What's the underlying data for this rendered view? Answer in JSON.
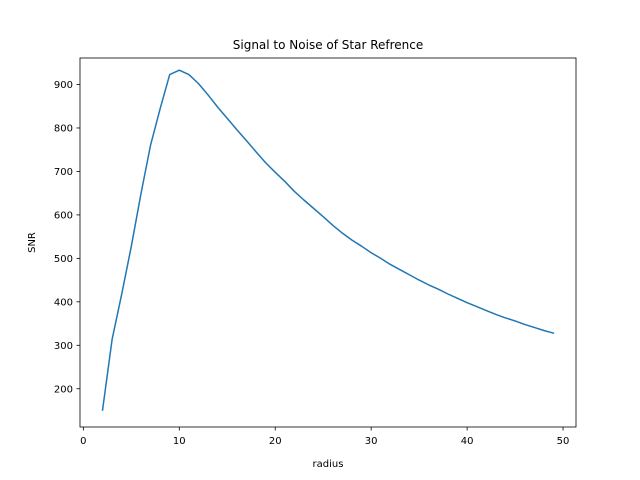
{
  "chart_data": {
    "type": "line",
    "title": "Signal to Noise of Star Refrence",
    "xlabel": "radius",
    "ylabel": "SNR",
    "xlim": [
      -0.35,
      51.35
    ],
    "ylim": [
      112,
      961
    ],
    "xticks": [
      0,
      10,
      20,
      30,
      40,
      50
    ],
    "yticks": [
      200,
      300,
      400,
      500,
      600,
      700,
      800,
      900
    ],
    "xtick_labels": [
      "0",
      "10",
      "20",
      "30",
      "40",
      "50"
    ],
    "ytick_labels": [
      "200",
      "300",
      "400",
      "500",
      "600",
      "700",
      "800",
      "900"
    ],
    "grid": false,
    "legend": "none",
    "series": [
      {
        "color": "#1f77b4",
        "x": [
          2,
          3,
          4,
          5,
          6,
          7,
          8,
          9,
          10,
          11,
          12,
          13,
          14,
          15,
          16,
          17,
          18,
          19,
          20,
          21,
          22,
          23,
          24,
          25,
          26,
          27,
          28,
          29,
          30,
          31,
          32,
          33,
          34,
          35,
          36,
          37,
          38,
          39,
          40,
          41,
          42,
          43,
          44,
          45,
          46,
          47,
          48,
          49
        ],
        "y": [
          151,
          314,
          418,
          528,
          648,
          760,
          844,
          923,
          933,
          923,
          902,
          876,
          848,
          822,
          796,
          771,
          745,
          720,
          698,
          677,
          654,
          634,
          615,
          596,
          576,
          558,
          542,
          528,
          513,
          500,
          486,
          474,
          462,
          450,
          439,
          429,
          418,
          408,
          398,
          389,
          380,
          371,
          363,
          356,
          348,
          341,
          334,
          328
        ]
      }
    ]
  }
}
